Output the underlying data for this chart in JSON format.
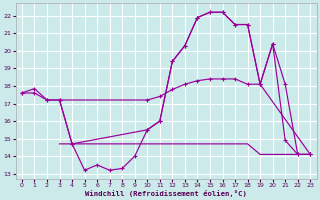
{
  "xlabel": "Windchill (Refroidissement éolien,°C)",
  "bg_color": "#cceaea",
  "grid_color": "#ffffff",
  "line_color": "#990099",
  "xlim": [
    -0.5,
    23.5
  ],
  "ylim": [
    12.7,
    22.7
  ],
  "xticks": [
    0,
    1,
    2,
    3,
    4,
    5,
    6,
    7,
    8,
    9,
    10,
    11,
    12,
    13,
    14,
    15,
    16,
    17,
    18,
    19,
    20,
    21,
    22,
    23
  ],
  "yticks": [
    13,
    14,
    15,
    16,
    17,
    18,
    19,
    20,
    21,
    22
  ],
  "line_A_x": [
    0,
    1,
    2,
    3,
    4,
    5,
    6,
    7,
    8,
    9,
    10,
    11,
    12,
    13,
    14,
    15,
    16,
    17,
    18,
    19,
    20,
    21,
    22,
    23
  ],
  "line_A_y": [
    17.6,
    17.85,
    17.2,
    17.2,
    14.7,
    13.2,
    13.5,
    13.2,
    13.3,
    14.0,
    15.5,
    16.0,
    19.4,
    20.3,
    21.9,
    22.2,
    22.2,
    21.5,
    21.5,
    18.1,
    20.4,
    14.9,
    14.1,
    14.1
  ],
  "line_B_x": [
    0,
    1,
    2,
    3,
    10,
    11,
    12,
    13,
    14,
    15,
    16,
    17,
    18,
    19,
    20,
    21,
    22,
    23
  ],
  "line_B_y": [
    17.6,
    17.6,
    17.2,
    17.2,
    17.2,
    17.4,
    17.8,
    18.1,
    18.3,
    18.4,
    18.4,
    18.4,
    18.1,
    18.1,
    20.4,
    18.1,
    14.1,
    14.1
  ],
  "line_C_x": [
    3,
    4,
    10,
    11,
    12,
    13,
    14,
    15,
    16,
    17,
    18,
    19,
    23
  ],
  "line_C_y": [
    17.2,
    14.7,
    15.5,
    16.0,
    19.4,
    20.3,
    21.9,
    22.2,
    22.2,
    21.5,
    21.5,
    18.1,
    14.1
  ],
  "line_D_x": [
    3,
    4,
    5,
    6,
    7,
    8,
    9,
    10,
    11,
    12,
    13,
    14,
    15,
    16,
    17,
    18,
    19,
    23
  ],
  "line_D_y": [
    14.7,
    14.7,
    14.7,
    14.7,
    14.7,
    14.7,
    14.7,
    14.7,
    14.7,
    14.7,
    14.7,
    14.7,
    14.7,
    14.7,
    14.7,
    14.7,
    14.1,
    14.1
  ]
}
